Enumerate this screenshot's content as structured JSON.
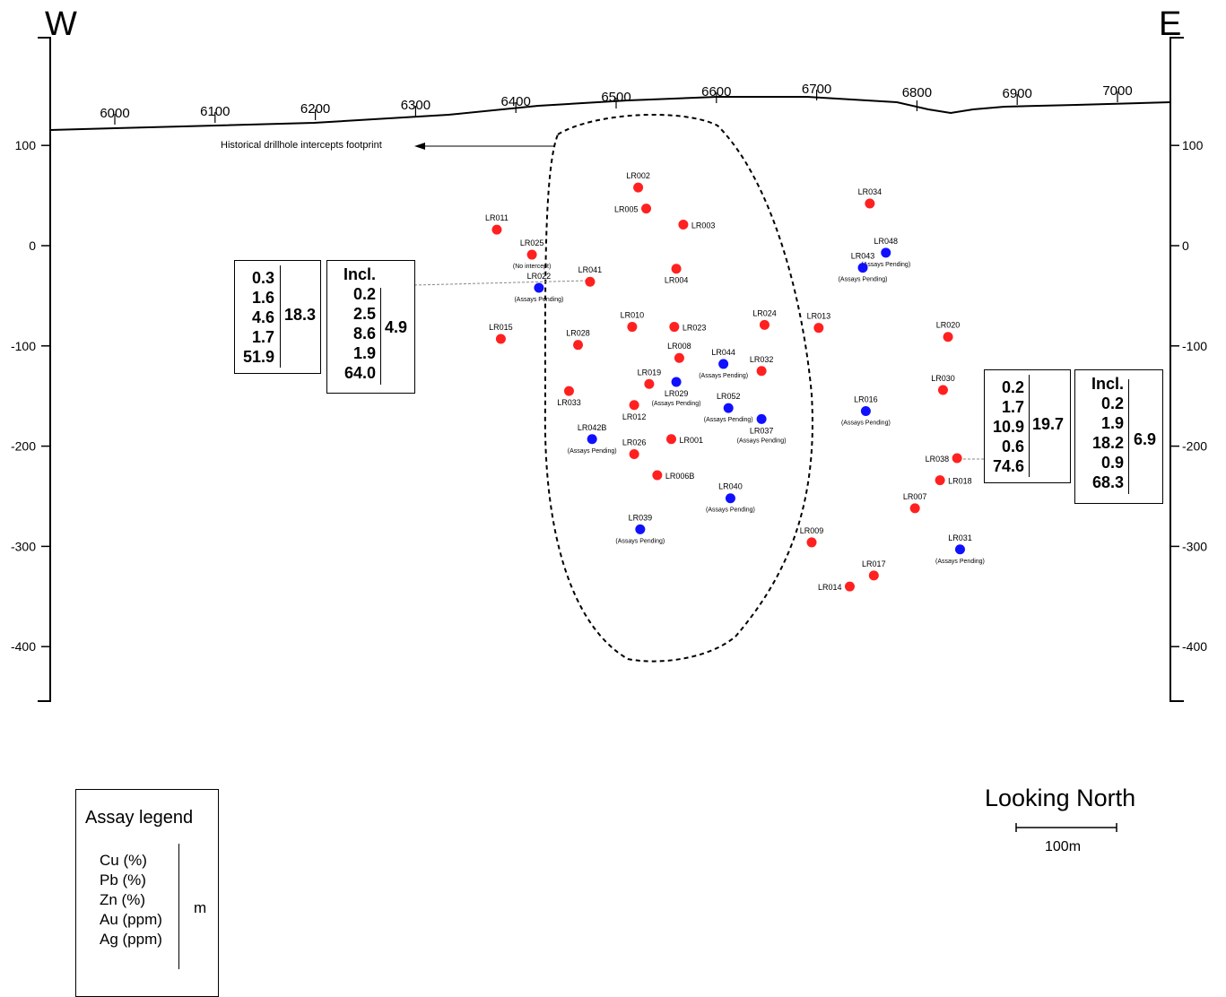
{
  "section": {
    "west_label": "W",
    "east_label": "E",
    "footprint_label": "Historical drillhole intercepts footprint",
    "easting_ticks": [
      {
        "value": "6000",
        "surface_y": 113
      },
      {
        "value": "6100",
        "surface_y": 111
      },
      {
        "value": "6200",
        "surface_y": 108
      },
      {
        "value": "6300",
        "surface_y": 104
      },
      {
        "value": "6400",
        "surface_y": 100
      },
      {
        "value": "6500",
        "surface_y": 95
      },
      {
        "value": "6600",
        "surface_y": 89
      },
      {
        "value": "6700",
        "surface_y": 86
      },
      {
        "value": "6800",
        "surface_y": 90
      },
      {
        "value": "6900",
        "surface_y": 91
      },
      {
        "value": "7000",
        "surface_y": 88
      }
    ],
    "elevation_ticks_left": [
      "100",
      "0",
      "-100",
      "-200",
      "-300",
      "-400"
    ],
    "elevation_ticks_right": [
      "100",
      "0",
      "-100",
      "-200",
      "-300",
      "-400"
    ]
  },
  "legend_colors": {
    "assayed": "#ff2020",
    "pending": "#1010ff"
  },
  "drillholes": [
    {
      "id": "LR002",
      "easting": 6522,
      "rl": 58,
      "status": "assayed",
      "label_pos": "above"
    },
    {
      "id": "LR005",
      "easting": 6530,
      "rl": 37,
      "status": "assayed",
      "label_pos": "left"
    },
    {
      "id": "LR003",
      "easting": 6567,
      "rl": 21,
      "status": "assayed",
      "label_pos": "right"
    },
    {
      "id": "LR011",
      "easting": 6381,
      "rl": 16,
      "status": "assayed",
      "label_pos": "above"
    },
    {
      "id": "LR025",
      "easting": 6416,
      "rl": -9,
      "status": "assayed",
      "label_pos": "above",
      "note": "(No intercept)"
    },
    {
      "id": "LR041",
      "easting": 6474,
      "rl": -36,
      "status": "assayed",
      "label_pos": "above"
    },
    {
      "id": "LR004",
      "easting": 6560,
      "rl": -23,
      "status": "assayed",
      "label_pos": "below"
    },
    {
      "id": "LR010",
      "easting": 6516,
      "rl": -81,
      "status": "assayed",
      "label_pos": "above"
    },
    {
      "id": "LR023",
      "easting": 6558,
      "rl": -81,
      "status": "assayed",
      "label_pos": "right"
    },
    {
      "id": "LR024",
      "easting": 6648,
      "rl": -79,
      "status": "assayed",
      "label_pos": "above"
    },
    {
      "id": "LR013",
      "easting": 6702,
      "rl": -82,
      "status": "assayed",
      "label_pos": "above"
    },
    {
      "id": "LR015",
      "easting": 6385,
      "rl": -93,
      "status": "assayed",
      "label_pos": "above"
    },
    {
      "id": "LR028",
      "easting": 6462,
      "rl": -99,
      "status": "assayed",
      "label_pos": "above"
    },
    {
      "id": "LR008",
      "easting": 6563,
      "rl": -112,
      "status": "assayed",
      "label_pos": "above"
    },
    {
      "id": "LR032",
      "easting": 6645,
      "rl": -125,
      "status": "assayed",
      "label_pos": "above"
    },
    {
      "id": "LR019",
      "easting": 6533,
      "rl": -138,
      "status": "assayed",
      "label_pos": "above"
    },
    {
      "id": "LR033",
      "easting": 6453,
      "rl": -145,
      "status": "assayed",
      "label_pos": "below"
    },
    {
      "id": "LR012",
      "easting": 6518,
      "rl": -159,
      "status": "assayed",
      "label_pos": "below"
    },
    {
      "id": "LR001",
      "easting": 6555,
      "rl": -193,
      "status": "assayed",
      "label_pos": "right"
    },
    {
      "id": "LR026",
      "easting": 6518,
      "rl": -208,
      "status": "assayed",
      "label_pos": "above"
    },
    {
      "id": "LR006B",
      "easting": 6541,
      "rl": -229,
      "status": "assayed",
      "label_pos": "right"
    },
    {
      "id": "LR034",
      "easting": 6753,
      "rl": 42,
      "status": "assayed",
      "label_pos": "above"
    },
    {
      "id": "LR020",
      "easting": 6831,
      "rl": -91,
      "status": "assayed",
      "label_pos": "above"
    },
    {
      "id": "LR030",
      "easting": 6826,
      "rl": -144,
      "status": "assayed",
      "label_pos": "above"
    },
    {
      "id": "LR038",
      "easting": 6840,
      "rl": -212,
      "status": "assayed",
      "label_pos": "left"
    },
    {
      "id": "LR018",
      "easting": 6823,
      "rl": -234,
      "status": "assayed",
      "label_pos": "right"
    },
    {
      "id": "LR007",
      "easting": 6798,
      "rl": -262,
      "status": "assayed",
      "label_pos": "above"
    },
    {
      "id": "LR009",
      "easting": 6695,
      "rl": -296,
      "status": "assayed",
      "label_pos": "above"
    },
    {
      "id": "LR017",
      "easting": 6757,
      "rl": -329,
      "status": "assayed",
      "label_pos": "above"
    },
    {
      "id": "LR014",
      "easting": 6733,
      "rl": -340,
      "status": "assayed",
      "label_pos": "left"
    },
    {
      "id": "LR022",
      "easting": 6423,
      "rl": -42,
      "status": "pending",
      "label_pos": "above",
      "note": "(Assays Pending)"
    },
    {
      "id": "LR048",
      "easting": 6769,
      "rl": -7,
      "status": "pending",
      "label_pos": "above",
      "note": "(Assays Pending)"
    },
    {
      "id": "LR043",
      "easting": 6746,
      "rl": -22,
      "status": "pending",
      "label_pos": "above",
      "note": "(Assays Pending)"
    },
    {
      "id": "LR044",
      "easting": 6607,
      "rl": -118,
      "status": "pending",
      "label_pos": "above",
      "note": "(Assays Pending)"
    },
    {
      "id": "LR029",
      "easting": 6560,
      "rl": -136,
      "status": "pending",
      "label_pos": "below",
      "note": "(Assays Pending)"
    },
    {
      "id": "LR052",
      "easting": 6612,
      "rl": -162,
      "status": "pending",
      "label_pos": "above",
      "note": "(Assays Pending)"
    },
    {
      "id": "LR037",
      "easting": 6645,
      "rl": -173,
      "status": "pending",
      "label_pos": "below",
      "note": "(Assays Pending)"
    },
    {
      "id": "LR016",
      "easting": 6749,
      "rl": -165,
      "status": "pending",
      "label_pos": "above",
      "note": "(Assays Pending)"
    },
    {
      "id": "LR042B",
      "easting": 6476,
      "rl": -193,
      "status": "pending",
      "label_pos": "above",
      "note": "(Assays Pending)"
    },
    {
      "id": "LR040",
      "easting": 6614,
      "rl": -252,
      "status": "pending",
      "label_pos": "above",
      "note": "(Assays Pending)"
    },
    {
      "id": "LR039",
      "easting": 6524,
      "rl": -283,
      "status": "pending",
      "label_pos": "above",
      "note": "(Assays Pending)"
    },
    {
      "id": "LR031",
      "easting": 6843,
      "rl": -303,
      "status": "pending",
      "label_pos": "above",
      "note": "(Assays Pending)"
    }
  ],
  "intercept_left": {
    "main_values": [
      "0.3",
      "1.6",
      "4.6",
      "1.7",
      "51.9"
    ],
    "main_width": "18.3",
    "incl_label": "Incl.",
    "incl_values": [
      "0.2",
      "2.5",
      "8.6",
      "1.9",
      "64.0"
    ],
    "incl_width": "4.9"
  },
  "intercept_right": {
    "main_values": [
      "0.2",
      "1.7",
      "10.9",
      "0.6",
      "74.6"
    ],
    "main_width": "19.7",
    "incl_label": "Incl.",
    "incl_values": [
      "0.2",
      "1.9",
      "18.2",
      "0.9",
      "68.3"
    ],
    "incl_width": "6.9"
  },
  "legend": {
    "title": "Assay legend",
    "items": [
      "Cu (%)",
      "Pb (%)",
      "Zn (%)",
      "Au (ppm)",
      "Ag (ppm)"
    ],
    "unit": "m"
  },
  "orientation": {
    "label": "Looking North"
  },
  "scale_bar": {
    "label": "100m"
  }
}
